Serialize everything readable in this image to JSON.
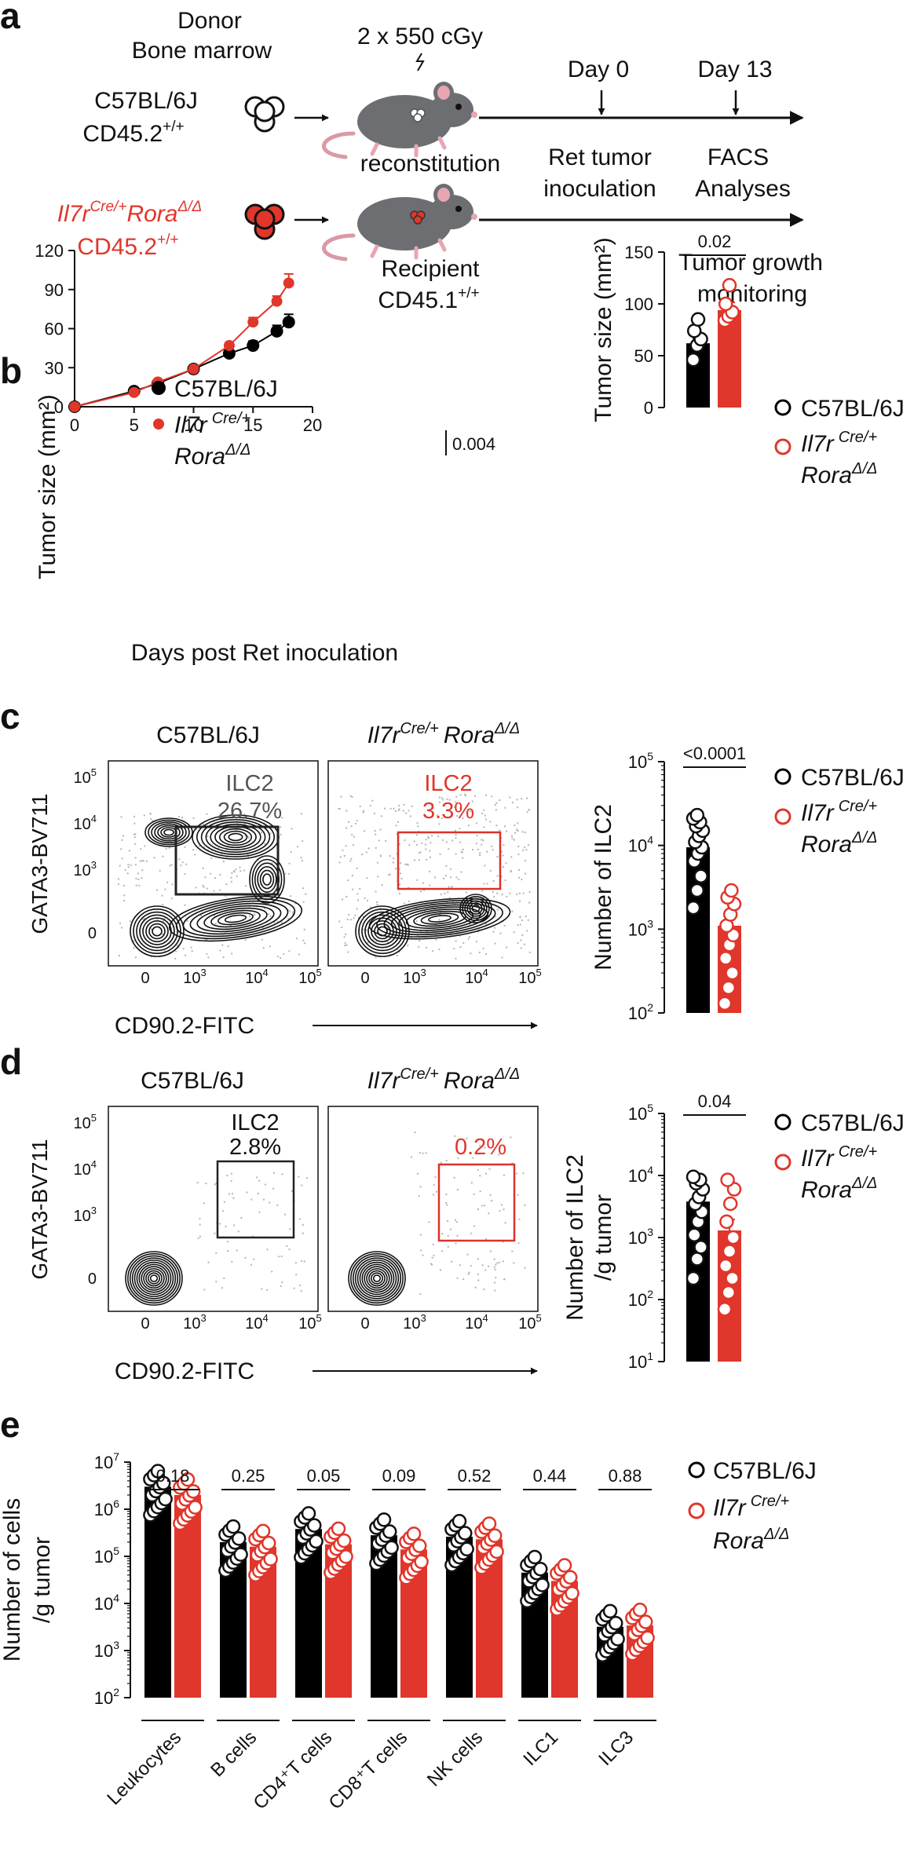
{
  "colors": {
    "wt": "#000000",
    "ko": "#e0362b",
    "gate_wt": "#222222",
    "gate_ko": "#d9332a"
  },
  "panel_labels": [
    "a",
    "b",
    "c",
    "d",
    "e"
  ],
  "schematic": {
    "donor_header": [
      "Donor",
      "Bone marrow"
    ],
    "irradiation": "2 x 550 cGy",
    "wt_donor": [
      "C57BL/6J",
      "CD45.2",
      "+/+"
    ],
    "ko_donor": {
      "gene1": "Il7r",
      "sup1": "Cre/+",
      "gene2": "Rora",
      "sup2": "Δ/Δ",
      "line2": "CD45.2",
      "sup3": "+/+"
    },
    "reconstitution": "reconstitution",
    "recipient": [
      "Recipient",
      "CD45.1",
      "+/+"
    ],
    "day0": "Day 0",
    "day13": "Day 13",
    "ret_inoc": [
      "Ret tumor",
      "inoculation"
    ],
    "facs": [
      "FACS",
      "Analyses"
    ],
    "monitoring": [
      "Tumor growth",
      "monitoring"
    ]
  },
  "legend": {
    "wt": "C57BL/6J",
    "ko_gene1": "Il7r",
    "ko_sup1": "Cre/+",
    "ko_gene2": "Rora",
    "ko_sup2": "Δ/Δ"
  },
  "flow": {
    "y_label": "GATA3-BV711",
    "x_label": "CD90.2-FITC",
    "y_ticks": [
      "10",
      "10",
      "10",
      "0"
    ],
    "y_tick_sups": [
      "5",
      "4",
      "3",
      ""
    ],
    "x_ticks": [
      "0",
      "10",
      "10",
      "10"
    ],
    "x_tick_sups": [
      "",
      "3",
      "4",
      "5"
    ],
    "c_wt_title": "C57BL/6J",
    "c_wt_gate": "ILC2",
    "c_wt_pct": "26.7%",
    "c_ko_gate": "ILC2",
    "c_ko_pct": "3.3%",
    "d_wt_title": "C57BL/6J",
    "d_wt_gate": "ILC2",
    "d_wt_pct": "2.8%",
    "d_ko_pct": "0.2%"
  },
  "chart_data": [
    {
      "id": "b-left",
      "type": "line",
      "xlabel": "Days post Ret inoculation",
      "ylabel": "Tumor size (mm²)",
      "xlim": [
        0,
        20
      ],
      "ylim": [
        0,
        120
      ],
      "x_ticks": [
        0,
        5,
        10,
        15,
        20
      ],
      "y_ticks": [
        0,
        30,
        60,
        90,
        120
      ],
      "series": [
        {
          "name": "C57BL/6J",
          "x": [
            0,
            5,
            7,
            10,
            13,
            15,
            17,
            18
          ],
          "y": [
            0,
            12,
            18,
            29,
            41,
            47,
            58,
            65
          ],
          "err": [
            0,
            1.5,
            1.5,
            1.5,
            2.5,
            3.5,
            4.5,
            6
          ]
        },
        {
          "name": "Il7r Cre/+ Rora Δ/Δ",
          "x": [
            0,
            5,
            7,
            10,
            13,
            15,
            17,
            18
          ],
          "y": [
            0,
            11,
            19,
            29,
            47,
            65,
            81,
            95
          ],
          "err": [
            0,
            1.5,
            1.5,
            2,
            2,
            3.5,
            4,
            7
          ]
        }
      ],
      "annotation": "0.004"
    },
    {
      "id": "b-right",
      "type": "bar",
      "ylabel": "Tumor size (mm²)",
      "ylim": [
        0,
        150
      ],
      "y_ticks": [
        0,
        50,
        100,
        150
      ],
      "categories": [
        "C57BL/6J",
        "Il7r Cre/+ Rora Δ/Δ"
      ],
      "values": [
        62,
        94
      ],
      "points": [
        [
          46,
          60,
          66,
          74,
          85
        ],
        [
          84,
          88,
          92,
          100,
          118
        ]
      ],
      "pvalue": "0.02"
    },
    {
      "id": "c-right",
      "type": "bar",
      "scale": "log",
      "ylabel": "Number of ILC2",
      "ylim": [
        100,
        100000
      ],
      "y_tick_base": "10",
      "y_tick_exps": [
        "5",
        "4",
        "3",
        "2"
      ],
      "categories": [
        "C57BL/6J",
        "Il7r Cre/+ Rora Δ/Δ"
      ],
      "values": [
        9500,
        1100
      ],
      "points": [
        [
          1800,
          2900,
          4300,
          6500,
          8000,
          9500,
          11000,
          13000,
          15000,
          17000,
          19000,
          21000,
          23000
        ],
        [
          130,
          200,
          300,
          450,
          650,
          850,
          1100,
          1500,
          2000,
          2400,
          2900
        ]
      ],
      "pvalue": "<0.0001"
    },
    {
      "id": "d-right",
      "type": "bar",
      "scale": "log",
      "ylabel": "Number of ILC2 /g tumor",
      "ylabel_lines": [
        "Number of ILC2",
        "/g tumor"
      ],
      "ylim": [
        10,
        100000
      ],
      "y_tick_base": "10",
      "y_tick_exps": [
        "5",
        "4",
        "3",
        "2",
        "1"
      ],
      "categories": [
        "C57BL/6J",
        "Il7r Cre/+ Rora Δ/Δ"
      ],
      "values": [
        3800,
        1300
      ],
      "points": [
        [
          220,
          450,
          700,
          1100,
          1800,
          2600,
          3500,
          4500,
          6000,
          7500,
          8500,
          9500
        ],
        [
          70,
          130,
          220,
          350,
          600,
          1000,
          1800,
          3500,
          6000,
          8500
        ]
      ],
      "pvalue": "0.04"
    },
    {
      "id": "e",
      "type": "bar",
      "scale": "log",
      "ylabel": "Number of cells /g tumor",
      "ylabel_lines": [
        "Number of cells",
        "/g tumor"
      ],
      "ylim": [
        100,
        10000000
      ],
      "y_tick_base": "10",
      "y_tick_exps": [
        "7",
        "6",
        "5",
        "4",
        "3",
        "2"
      ],
      "categories": [
        "Leukocytes",
        "B cells",
        "CD4⁺T cells",
        "CD8⁺T cells",
        "NK cells",
        "ILC1",
        "ILC3"
      ],
      "series": [
        {
          "name": "C57BL/6J",
          "values": [
            3000000,
            200000,
            380000,
            280000,
            260000,
            45000,
            3200
          ]
        },
        {
          "name": "Il7r Cre/+ Rora Δ/Δ",
          "values": [
            2000000,
            160000,
            180000,
            140000,
            230000,
            30000,
            3400
          ]
        }
      ],
      "pvalues": [
        "0.18",
        "0.25",
        "0.05",
        "0.09",
        "0.52",
        "0.44",
        "0.88"
      ]
    }
  ]
}
